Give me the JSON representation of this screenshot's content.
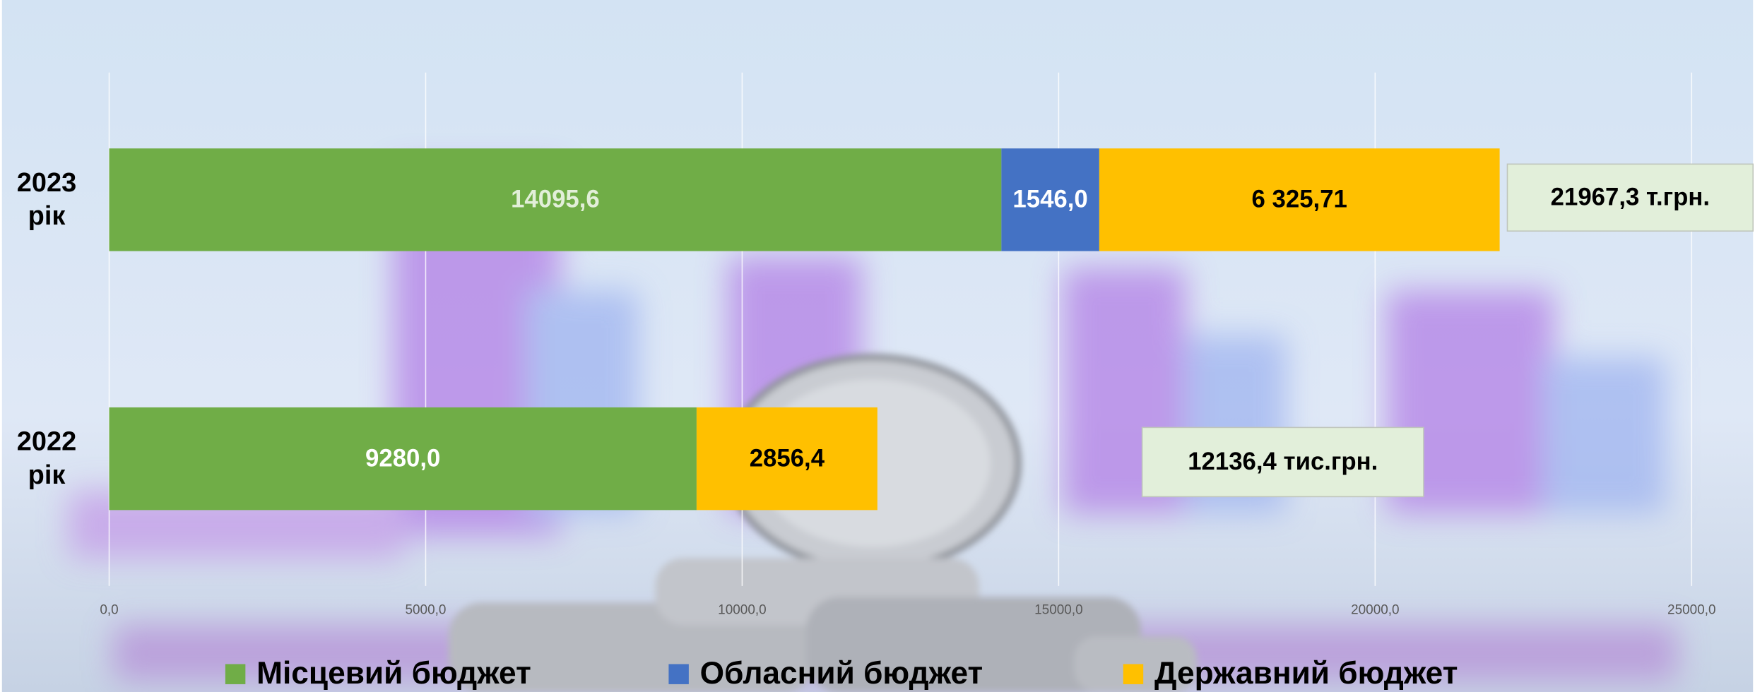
{
  "chart_data": {
    "type": "stacked-barh",
    "categories": [
      "2023 рік",
      "2022 рік"
    ],
    "series": [
      {
        "name": "Місцевий бюджет",
        "color": "#70ad47",
        "values": [
          14095.6,
          9280.0
        ],
        "value_labels": [
          "14095,6",
          "9280,0"
        ]
      },
      {
        "name": "Обласний бюджет",
        "color": "#4472c4",
        "values": [
          1546.0,
          null
        ],
        "value_labels": [
          "1546,0",
          null
        ]
      },
      {
        "name": "Державний бюджет",
        "color": "#ffc000",
        "values": [
          6325.71,
          2856.4
        ],
        "value_labels": [
          "6 325,71",
          "2856,4"
        ]
      }
    ],
    "annotations": [
      "21967,3 т.грн.",
      "12136,4 тис.грн."
    ],
    "xlim": [
      0,
      25000
    ],
    "xticks": [
      {
        "value": 0,
        "label": "0,0"
      },
      {
        "value": 5000,
        "label": "5000,0"
      },
      {
        "value": 10000,
        "label": "10000,0"
      },
      {
        "value": 15000,
        "label": "15000,0"
      },
      {
        "value": 20000,
        "label": "20000,0"
      },
      {
        "value": 25000,
        "label": "25000,0"
      }
    ],
    "grid": true,
    "legend": "bottom"
  }
}
